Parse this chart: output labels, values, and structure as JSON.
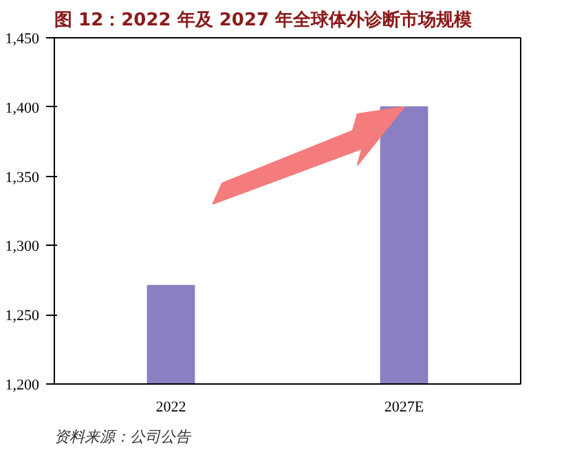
{
  "chart_data": {
    "type": "bar",
    "title": "图 12：2022 年及 2027 年全球体外诊断市场规模",
    "categories": [
      "2022",
      "2027E"
    ],
    "values": [
      1271,
      1400
    ],
    "color": "#8a7fc0",
    "ylim": [
      1200,
      1450
    ],
    "yticks": [
      {
        "value": 1200,
        "label": "1,200"
      },
      {
        "value": 1250,
        "label": "1,250"
      },
      {
        "value": 1300,
        "label": "1,300"
      },
      {
        "value": 1350,
        "label": "1,350"
      },
      {
        "value": 1400,
        "label": "1,400"
      },
      {
        "value": 1450,
        "label": "1,450"
      }
    ],
    "grid": false,
    "annotations": [
      "资料来源：公司公告"
    ]
  }
}
